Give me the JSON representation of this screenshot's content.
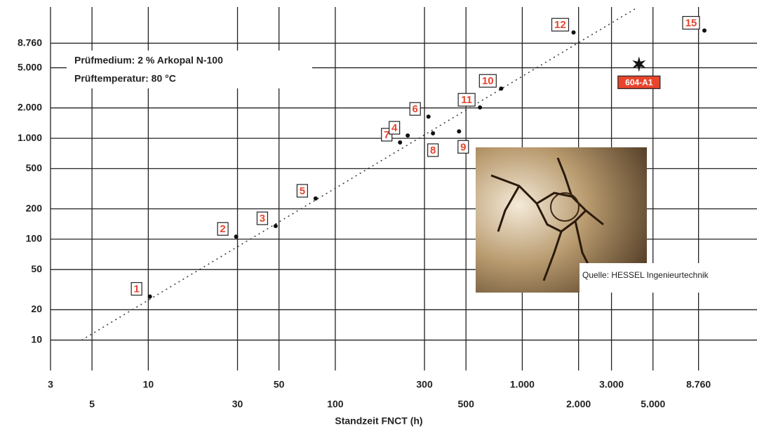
{
  "chart_data": {
    "type": "scatter",
    "xlabel": "Standzeit FNCT (h)",
    "log_x": true,
    "log_y": true,
    "grid": true,
    "xlim": [
      3,
      18000
    ],
    "ylim": [
      5,
      20000
    ],
    "xticks": [
      3,
      5,
      10,
      30,
      50,
      100,
      300,
      500,
      {
        "value": 1000,
        "label": "1.000"
      },
      {
        "value": 2000,
        "label": "2.000"
      },
      {
        "value": 3000,
        "label": "3.000"
      },
      {
        "value": 5000,
        "label": "5.000"
      },
      {
        "value": 8760,
        "label": "8.760"
      }
    ],
    "yticks": [
      10,
      20,
      50,
      100,
      200,
      500,
      {
        "value": 1000,
        "label": "1.000"
      },
      {
        "value": 2000,
        "label": "2.000"
      },
      {
        "value": 5000,
        "label": "5.000"
      },
      {
        "value": 8760,
        "label": "8.760"
      }
    ],
    "color": "#111111",
    "label_color": "#e8452c",
    "points": [
      {
        "label": "1",
        "x": 10.2,
        "y": 27
      },
      {
        "label": "2",
        "x": 29.5,
        "y": 106
      },
      {
        "label": "3",
        "x": 48,
        "y": 135
      },
      {
        "label": "5",
        "x": 78.5,
        "y": 253
      },
      {
        "label": "7",
        "x": 222,
        "y": 910
      },
      {
        "label": "4",
        "x": 244,
        "y": 1066
      },
      {
        "label": "8",
        "x": 333,
        "y": 1120
      },
      {
        "label": "6",
        "x": 315,
        "y": 1640
      },
      {
        "label": "9",
        "x": 459,
        "y": 1170
      },
      {
        "label": "11",
        "x": 594,
        "y": 2020
      },
      {
        "label": "10",
        "x": 771,
        "y": 3110
      },
      {
        "label": "12",
        "x": 1880,
        "y": 11200
      },
      {
        "label": "15",
        "x": 9420,
        "y": 11700
      },
      {
        "label": "604-A1",
        "x": 4210,
        "y": 5440,
        "marker": "star"
      }
    ],
    "trendline": {
      "x": [
        4.4,
        4030
      ],
      "y": [
        10,
        19300
      ]
    },
    "annotations": [
      "Prüfmedium: 2 % Arkopal N-100",
      "Prüftemperatur: 80 °C",
      "Quelle: HESSEL Ingenieurtechnik"
    ]
  }
}
